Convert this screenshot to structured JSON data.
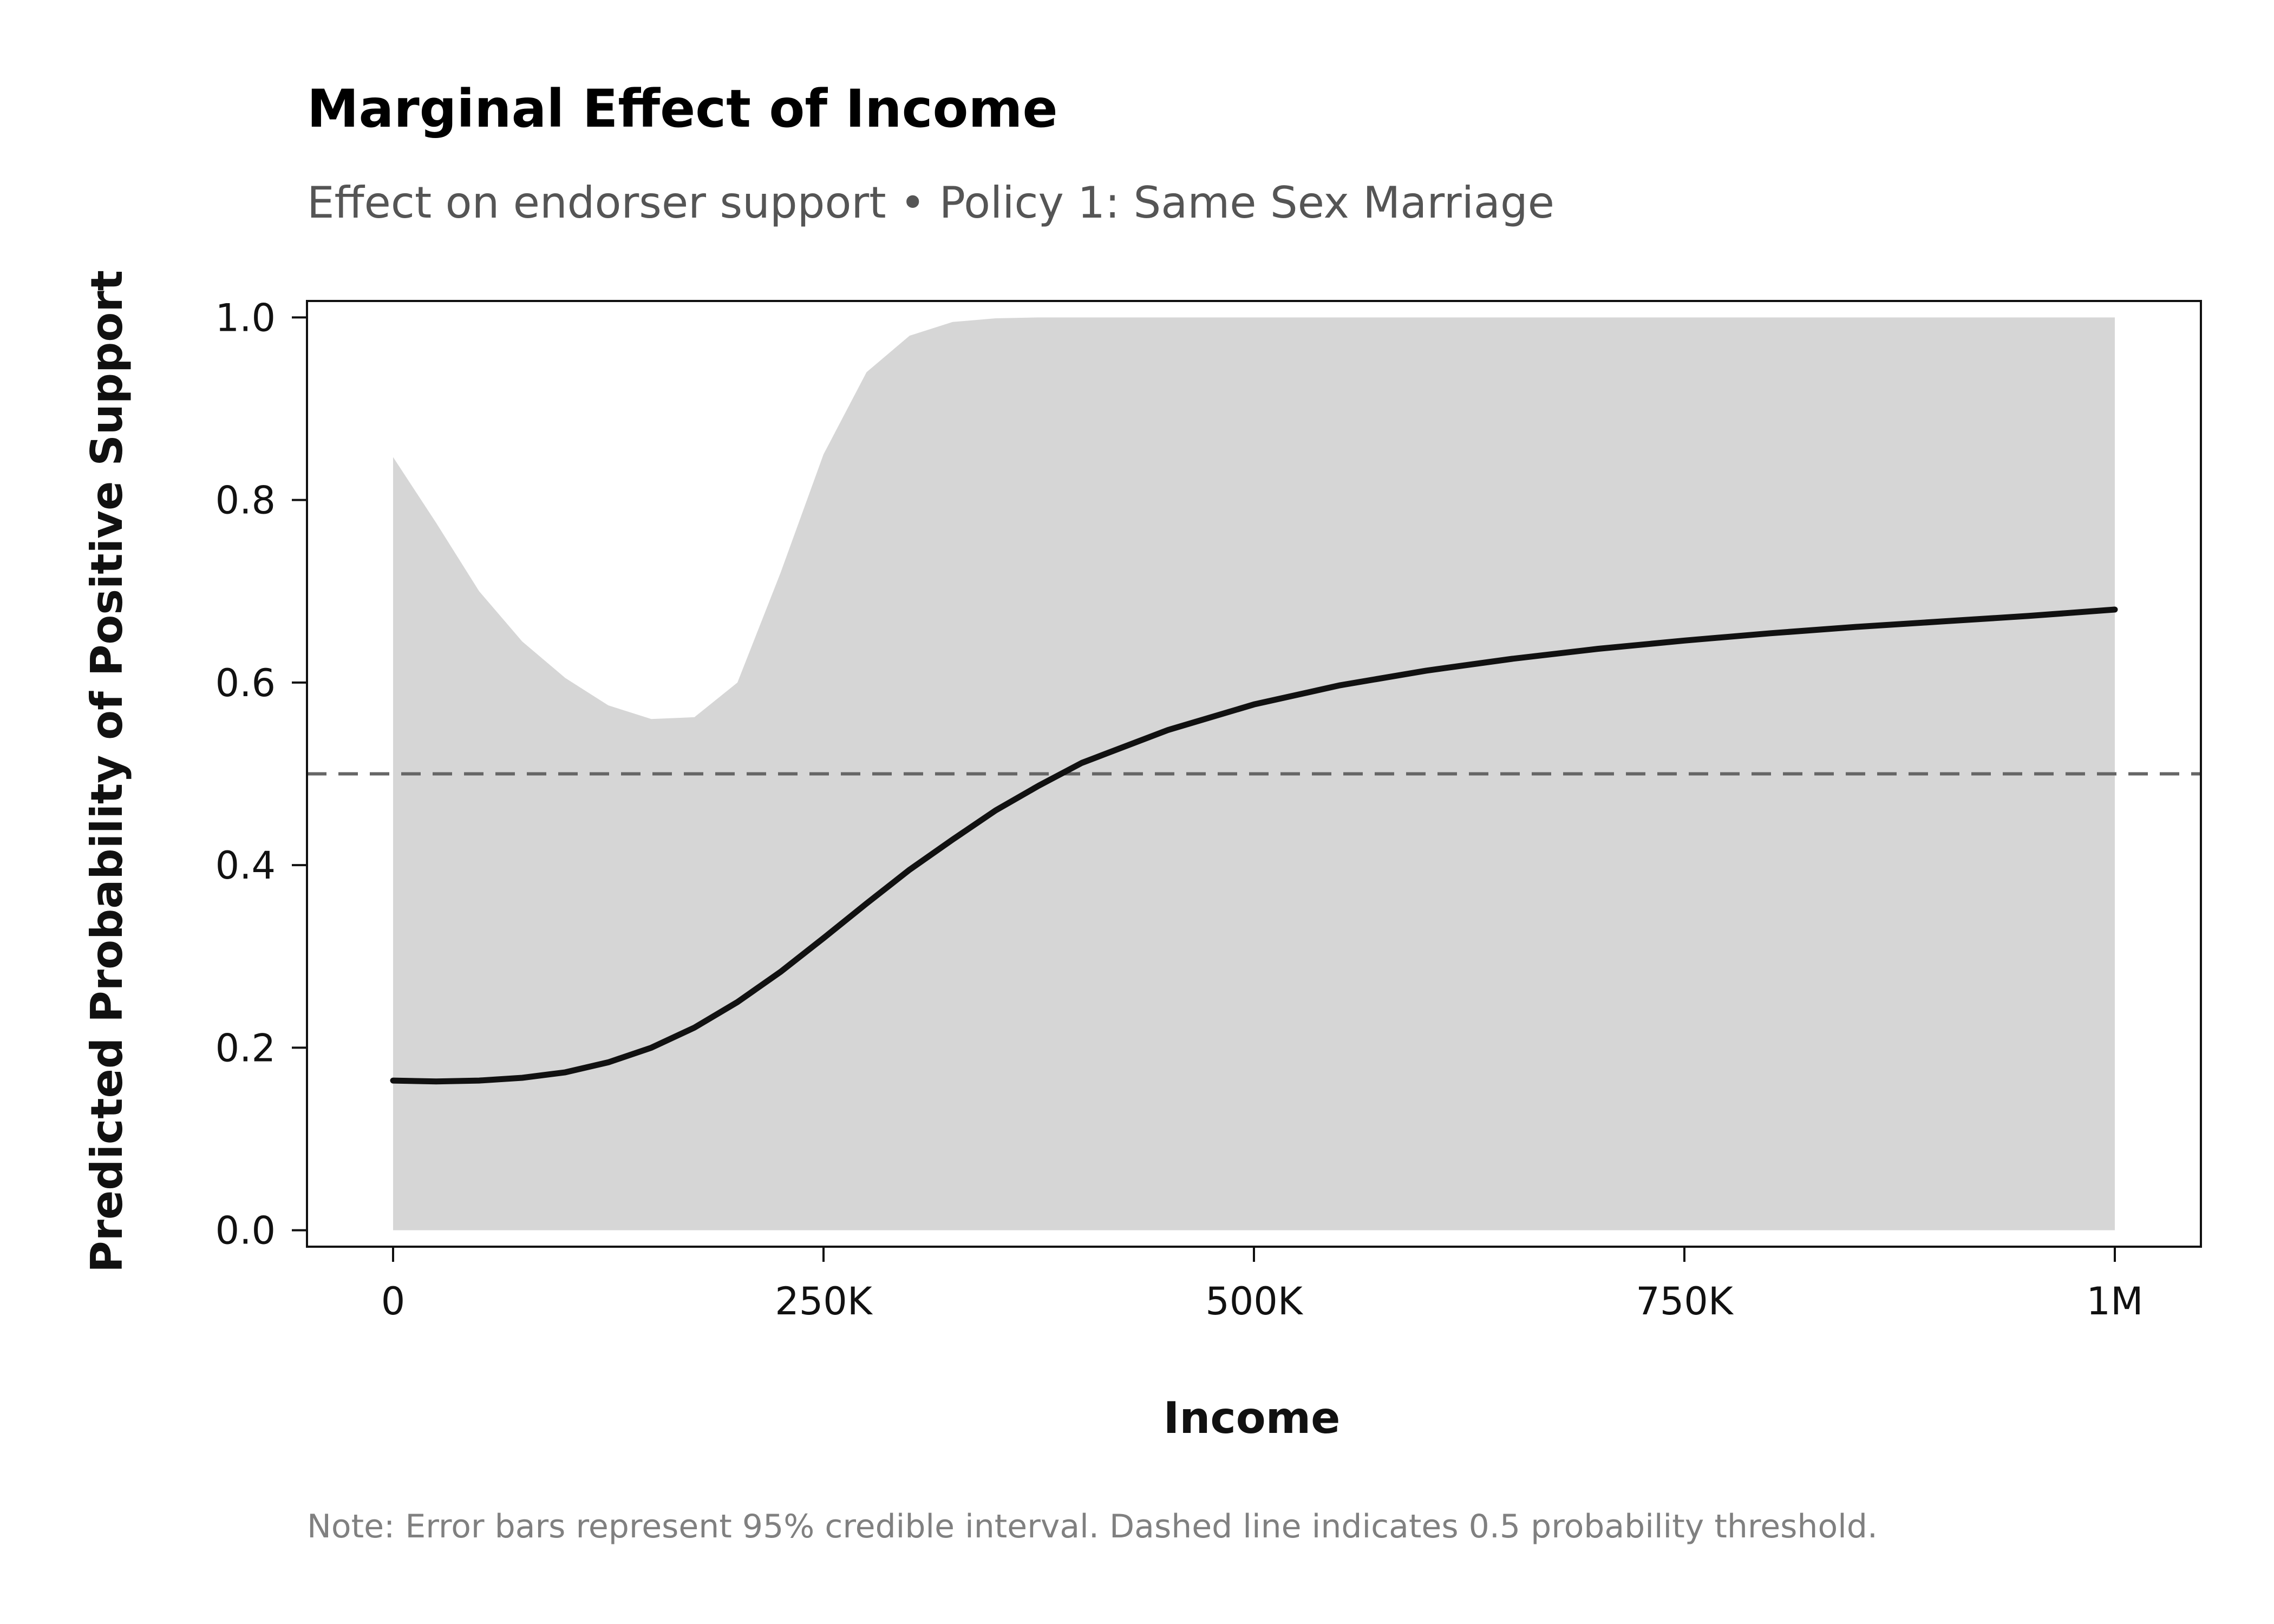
{
  "chart_data": {
    "type": "line",
    "title": "Marginal Effect of Income",
    "subtitle": "Effect on endorser support • Policy 1: Same Sex Marriage",
    "xlabel": "Income",
    "ylabel": "Predicted Probability of Positive Support",
    "note": "Note: Error bars represent 95% credible interval. Dashed line indicates 0.5 probability threshold.",
    "xlim": [
      -50000,
      1050000
    ],
    "ylim": [
      -0.018,
      1.018
    ],
    "x_ticks": [
      0,
      250000,
      500000,
      750000,
      1000000
    ],
    "x_tick_labels": [
      "0",
      "250K",
      "500K",
      "750K",
      "1M"
    ],
    "y_ticks": [
      0.0,
      0.2,
      0.4,
      0.6,
      0.8,
      1.0
    ],
    "y_tick_labels": [
      "0.0",
      "0.2",
      "0.4",
      "0.6",
      "0.8",
      "1.0"
    ],
    "grid": false,
    "reference_line": {
      "y": 0.5,
      "style": "dashed",
      "color": "#666666"
    },
    "colors": {
      "line": "#111111",
      "band": "#d6d6d6",
      "axis": "#111111"
    },
    "series": [
      {
        "x": [
          0,
          25000,
          50000,
          75000,
          100000,
          125000,
          150000,
          175000,
          200000,
          225000,
          250000,
          275000,
          300000,
          325000,
          350000,
          375000,
          400000,
          450000,
          500000,
          550000,
          600000,
          650000,
          700000,
          750000,
          800000,
          850000,
          900000,
          950000,
          1000000
        ],
        "y": [
          0.164,
          0.163,
          0.164,
          0.167,
          0.173,
          0.184,
          0.2,
          0.222,
          0.25,
          0.283,
          0.32,
          0.358,
          0.395,
          0.428,
          0.46,
          0.487,
          0.512,
          0.548,
          0.576,
          0.597,
          0.613,
          0.626,
          0.637,
          0.646,
          0.654,
          0.661,
          0.667,
          0.673,
          0.68
        ],
        "lower": [
          0.0,
          0.0,
          0.0,
          0.0,
          0.0,
          0.0,
          0.0,
          0.0,
          0.0,
          0.0,
          0.0,
          0.0,
          0.0,
          0.0,
          0.0,
          0.0,
          0.0,
          0.0,
          0.0,
          0.0,
          0.0,
          0.0,
          0.0,
          0.0,
          0.0,
          0.0,
          0.0,
          0.0,
          0.0
        ],
        "upper": [
          0.847,
          0.775,
          0.7,
          0.645,
          0.605,
          0.575,
          0.56,
          0.562,
          0.6,
          0.72,
          0.85,
          0.94,
          0.98,
          0.995,
          0.999,
          1.0,
          1.0,
          1.0,
          1.0,
          1.0,
          1.0,
          1.0,
          1.0,
          1.0,
          1.0,
          1.0,
          1.0,
          1.0,
          1.0
        ]
      }
    ]
  }
}
